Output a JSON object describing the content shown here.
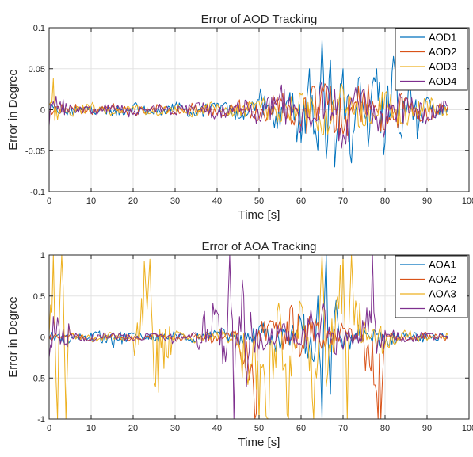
{
  "chart_data": [
    {
      "type": "line",
      "title": "Error of AOD Tracking",
      "xlabel": "Time [s]",
      "ylabel": "Error in Degree",
      "xlim": [
        0,
        100
      ],
      "ylim": [
        -0.1,
        0.1
      ],
      "xticks": [
        "0",
        "10",
        "20",
        "30",
        "40",
        "50",
        "60",
        "70",
        "80",
        "90",
        "100"
      ],
      "yticks": [
        "0.1",
        "0.05",
        "0",
        "-0.05",
        "-0.1"
      ],
      "grid": true,
      "legend_position": "top-right",
      "series": [
        {
          "name": "AOD1",
          "color": "#0072BD",
          "x": [
            0,
            5,
            10,
            15,
            20,
            25,
            30,
            35,
            40,
            45,
            50,
            55,
            58,
            60,
            62,
            64,
            65,
            66,
            67,
            68,
            70,
            72,
            74,
            76,
            78,
            80,
            82,
            84,
            86,
            88,
            90,
            92,
            95
          ],
          "y": [
            0.002,
            -0.006,
            0.004,
            -0.007,
            0.005,
            -0.006,
            0.005,
            -0.008,
            0.008,
            -0.01,
            0.012,
            -0.02,
            0.02,
            -0.04,
            0.05,
            -0.05,
            0.085,
            -0.06,
            0.06,
            -0.07,
            0.05,
            -0.065,
            0.04,
            -0.045,
            0.05,
            -0.04,
            0.065,
            -0.035,
            0.03,
            -0.02,
            0.015,
            -0.01,
            0.005
          ]
        },
        {
          "name": "AOD2",
          "color": "#D95319",
          "x": [
            0,
            5,
            10,
            15,
            20,
            25,
            30,
            35,
            40,
            45,
            50,
            55,
            60,
            65,
            70,
            75,
            80,
            85,
            90,
            95
          ],
          "y": [
            -0.004,
            0.005,
            -0.004,
            0.004,
            -0.005,
            0.004,
            -0.004,
            0.006,
            -0.006,
            0.008,
            -0.012,
            0.015,
            -0.02,
            0.03,
            -0.03,
            0.025,
            -0.025,
            0.015,
            -0.01,
            0.005
          ]
        },
        {
          "name": "AOD3",
          "color": "#EDB120",
          "x": [
            0,
            1,
            2,
            3,
            5,
            10,
            15,
            20,
            25,
            30,
            35,
            40,
            45,
            50,
            55,
            60,
            65,
            70,
            75,
            80,
            85,
            90,
            95
          ],
          "y": [
            0.005,
            0.038,
            -0.012,
            0.004,
            -0.006,
            0.005,
            -0.004,
            0.004,
            -0.005,
            0.004,
            -0.006,
            0.007,
            -0.008,
            0.01,
            -0.015,
            0.018,
            -0.03,
            0.025,
            -0.02,
            0.02,
            -0.015,
            0.01,
            -0.005
          ]
        },
        {
          "name": "AOD4",
          "color": "#7E2F8E",
          "x": [
            0,
            1,
            5,
            10,
            15,
            20,
            25,
            30,
            35,
            40,
            45,
            50,
            55,
            60,
            65,
            70,
            75,
            80,
            85,
            90,
            95
          ],
          "y": [
            -0.02,
            0.01,
            0.006,
            -0.005,
            0.006,
            -0.006,
            0.005,
            -0.005,
            0.008,
            -0.008,
            0.01,
            -0.012,
            0.02,
            -0.025,
            0.035,
            -0.03,
            0.025,
            -0.025,
            0.015,
            -0.01,
            0.006
          ]
        }
      ]
    },
    {
      "type": "line",
      "title": "Error of AOA Tracking",
      "xlabel": "Time [s]",
      "ylabel": "Error in Degree",
      "xlim": [
        0,
        100
      ],
      "ylim": [
        -1,
        1
      ],
      "xticks": [
        "0",
        "10",
        "20",
        "30",
        "40",
        "50",
        "60",
        "70",
        "80",
        "90",
        "100"
      ],
      "yticks": [
        "1",
        "0.5",
        "0",
        "-0.5",
        "-1"
      ],
      "grid": true,
      "legend_position": "top-right",
      "series": [
        {
          "name": "AOA1",
          "color": "#0072BD",
          "x": [
            0,
            5,
            10,
            15,
            20,
            25,
            30,
            35,
            40,
            45,
            50,
            55,
            60,
            63,
            64,
            65,
            66,
            67,
            68,
            70,
            75,
            80,
            85,
            90,
            95
          ],
          "y": [
            0.02,
            -0.05,
            0.05,
            -0.08,
            0.04,
            -0.04,
            0.04,
            -0.05,
            0.06,
            -0.1,
            0.12,
            -0.15,
            0.2,
            -0.3,
            0.5,
            -1,
            1,
            -0.7,
            0.3,
            -0.15,
            0.1,
            -0.08,
            0.05,
            -0.04,
            0.02
          ]
        },
        {
          "name": "AOA2",
          "color": "#D95319",
          "x": [
            0,
            5,
            10,
            15,
            20,
            25,
            30,
            35,
            40,
            45,
            49,
            50,
            55,
            58,
            60,
            62,
            65,
            70,
            75,
            79,
            80,
            85,
            90,
            95
          ],
          "y": [
            -0.03,
            0.03,
            -0.03,
            0.03,
            -0.03,
            0.03,
            -0.03,
            0.04,
            -0.05,
            0.06,
            -1,
            0.08,
            0.2,
            0.35,
            -0.2,
            0.25,
            -0.15,
            0.1,
            -0.08,
            -1,
            0.06,
            -0.04,
            0.03,
            -0.02
          ]
        },
        {
          "name": "AOA3",
          "color": "#EDB120",
          "x": [
            0,
            1,
            2,
            3,
            4,
            5,
            10,
            15,
            20,
            24,
            25,
            30,
            35,
            40,
            45,
            52,
            55,
            57,
            60,
            63,
            65,
            66,
            70,
            71,
            72,
            75,
            80,
            85,
            90,
            95
          ],
          "y": [
            0.02,
            1,
            -1,
            1,
            -1,
            0.04,
            -0.04,
            0.04,
            -0.05,
            0.95,
            -0.55,
            0.04,
            -0.05,
            0.06,
            -0.08,
            -1,
            0.3,
            -1,
            0.4,
            -1,
            1,
            -0.6,
            1,
            -1,
            1,
            0.2,
            -0.1,
            0.06,
            -0.04,
            0.02
          ]
        },
        {
          "name": "AOA4",
          "color": "#7E2F8E",
          "x": [
            0,
            1,
            5,
            10,
            15,
            20,
            25,
            30,
            35,
            40,
            42,
            43,
            44,
            46,
            47,
            48,
            50,
            55,
            60,
            65,
            70,
            75,
            77,
            78,
            80,
            85,
            90,
            95
          ],
          "y": [
            -0.25,
            0.25,
            0.03,
            -0.04,
            0.04,
            -0.04,
            0.04,
            -0.05,
            0.06,
            0.3,
            -0.3,
            1,
            -1,
            0.7,
            -0.6,
            0.3,
            -0.15,
            0.12,
            -0.1,
            0.3,
            -0.15,
            0.1,
            1,
            -0.2,
            0.08,
            -0.05,
            0.04,
            -0.03
          ]
        }
      ]
    }
  ]
}
